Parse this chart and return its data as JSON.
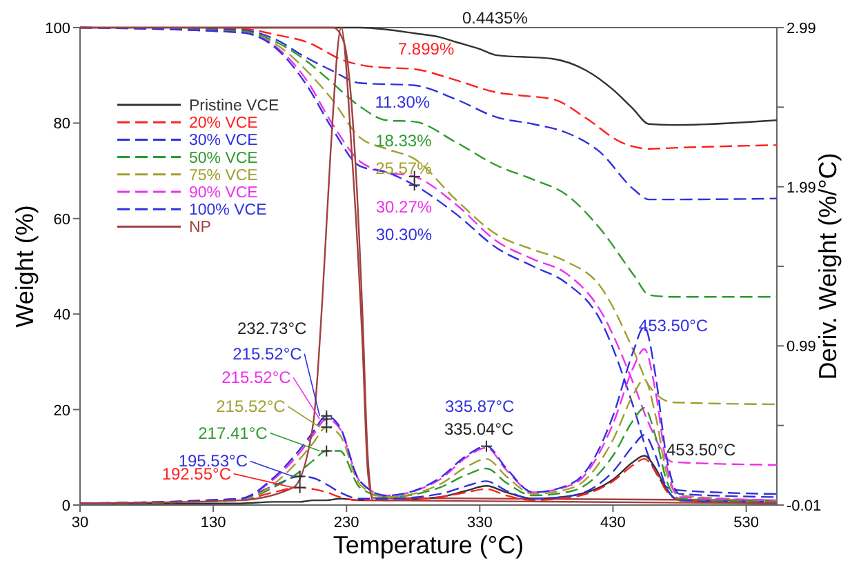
{
  "chart_data": {
    "type": "line",
    "xlabel": "Temperature (°C)",
    "ylabel": "Weight (%)",
    "y2label": "Deriv. Weight (%/°C)",
    "xlim": [
      30,
      553
    ],
    "xticks": [
      30,
      130,
      230,
      330,
      430,
      530
    ],
    "ylim": [
      0,
      100
    ],
    "yticks": [
      0,
      20,
      40,
      60,
      80,
      100
    ],
    "y2lim": [
      -0.01,
      2.99
    ],
    "y2ticks": [
      -0.01,
      {
        "value": 0.49,
        "label": null
      },
      0.99,
      {
        "value": 1.49,
        "label": null
      },
      1.99,
      {
        "value": 2.49,
        "label": null
      },
      2.99
    ],
    "legend": "top left",
    "grid": false,
    "series": [
      {
        "name": "Pristine VCE",
        "color": "#333333",
        "line_style": "solid",
        "x": [
          30,
          240,
          260,
          281,
          300,
          312,
          330,
          343,
          384,
          410,
          430,
          445,
          457,
          475,
          553
        ],
        "values": [
          100,
          100,
          99.6,
          98.8,
          98,
          97,
          95.5,
          94.2,
          93.5,
          91,
          87,
          83,
          79.8,
          79.6,
          80.6
        ]
      },
      {
        "name": "20% VCE",
        "color": "#ff2020",
        "line_style": "dashed",
        "x": [
          30,
          150,
          177,
          200,
          229,
          250,
          281,
          312,
          343,
          360,
          385,
          410,
          436,
          457,
          475,
          553
        ],
        "values": [
          100,
          99.8,
          98.5,
          97,
          93,
          91.8,
          91.3,
          89,
          86.4,
          85.8,
          85,
          81,
          76,
          74.6,
          74.8,
          75.4
        ]
      },
      {
        "name": "30% VCE",
        "color": "#3030dd",
        "line_style": "dashed",
        "x": [
          30,
          150,
          177,
          198,
          219,
          240,
          281,
          312,
          343,
          370,
          395,
          420,
          446,
          457,
          475,
          553
        ],
        "values": [
          100,
          99.5,
          97.5,
          94,
          91,
          88.4,
          87.9,
          85,
          81.2,
          79.8,
          78,
          74,
          66,
          64,
          64,
          64.2
        ]
      },
      {
        "name": "50% VCE",
        "color": "#2e9b2e",
        "line_style": "dashed",
        "x": [
          30,
          150,
          177,
          200,
          219,
          240,
          260,
          281,
          312,
          343,
          370,
          395,
          420,
          446,
          457,
          475,
          553
        ],
        "values": [
          100,
          99.3,
          97,
          93,
          88.5,
          83.5,
          80.6,
          80.3,
          76,
          71.1,
          68.2,
          65,
          58,
          48,
          44,
          43.6,
          43.6
        ]
      },
      {
        "name": "75% VCE",
        "color": "#a0a030",
        "line_style": "dashed",
        "x": [
          30,
          150,
          177,
          200,
          219,
          240,
          260,
          281,
          312,
          343,
          370,
          395,
          420,
          446,
          457,
          475,
          553
        ],
        "values": [
          100,
          99,
          96.5,
          91,
          85,
          77,
          74.6,
          72.5,
          64,
          56.6,
          53.5,
          51,
          46,
          32,
          25,
          21.5,
          21.1
        ]
      },
      {
        "name": "90% VCE",
        "color": "#ee30ee",
        "line_style": "dashed",
        "x": [
          30,
          150,
          177,
          200,
          219,
          240,
          260,
          281,
          312,
          343,
          370,
          395,
          420,
          446,
          457,
          475,
          553
        ],
        "values": [
          100,
          99,
          96,
          89,
          80,
          72,
          69.7,
          68.8,
          63,
          55.2,
          51.5,
          48.5,
          41,
          25,
          17,
          9,
          8.4
        ]
      },
      {
        "name": "100% VCE",
        "color": "#3030e0",
        "line_style": "dashed",
        "x": [
          30,
          150,
          177,
          200,
          219,
          240,
          260,
          281,
          312,
          343,
          370,
          395,
          420,
          446,
          457,
          475,
          553
        ],
        "values": [
          100,
          99,
          95.7,
          88,
          79,
          71,
          69.7,
          67,
          61,
          53.8,
          50,
          46.5,
          39,
          20,
          10,
          3.2,
          2.3
        ]
      },
      {
        "name": "NP",
        "color": "#a04040",
        "line_style": "solid",
        "x": [
          30,
          220,
          228,
          236,
          242,
          246,
          250,
          553
        ],
        "values": [
          100,
          100,
          97,
          75,
          40,
          10,
          1.5,
          1
        ]
      },
      {
        "color": "#333333",
        "axis": "y2",
        "line_style": "solid",
        "x": [
          30,
          150,
          175,
          195,
          205,
          215,
          225,
          240,
          260,
          300,
          320,
          335,
          350,
          370,
          400,
          430,
          445,
          453.5,
          462,
          470,
          480,
          553
        ],
        "values": [
          0,
          0,
          0.01,
          0.01,
          0.02,
          0.02,
          0.03,
          0.02,
          0.02,
          0.04,
          0.08,
          0.11,
          0.07,
          0.03,
          0.05,
          0.15,
          0.26,
          0.3,
          0.22,
          0.09,
          0.02,
          0
        ]
      },
      {
        "color": "#ff2020",
        "axis": "y2",
        "line_style": "dashed",
        "x": [
          30,
          150,
          175,
          195,
          205,
          215,
          225,
          240,
          260,
          300,
          320,
          335,
          350,
          370,
          400,
          430,
          445,
          453.5,
          462,
          470,
          480,
          553
        ],
        "values": [
          0,
          0.02,
          0.07,
          0.1,
          0.09,
          0.07,
          0.04,
          0.02,
          0.02,
          0.04,
          0.07,
          0.09,
          0.05,
          0.02,
          0.04,
          0.14,
          0.24,
          0.28,
          0.2,
          0.08,
          0.02,
          0
        ]
      },
      {
        "color": "#3030dd",
        "axis": "y2",
        "line_style": "dashed",
        "x": [
          30,
          150,
          175,
          195,
          205,
          215,
          225,
          240,
          260,
          300,
          320,
          335,
          350,
          370,
          400,
          430,
          445,
          453.5,
          462,
          470,
          480,
          553
        ],
        "values": [
          0,
          0.03,
          0.11,
          0.17,
          0.16,
          0.12,
          0.07,
          0.03,
          0.03,
          0.06,
          0.11,
          0.14,
          0.08,
          0.03,
          0.05,
          0.2,
          0.36,
          0.43,
          0.3,
          0.1,
          0.02,
          0.01
        ]
      },
      {
        "color": "#2e9b2e",
        "axis": "y2",
        "line_style": "dashed",
        "x": [
          30,
          150,
          175,
          195,
          205,
          215,
          225,
          240,
          260,
          300,
          320,
          335,
          350,
          370,
          400,
          430,
          445,
          453.5,
          462,
          470,
          480,
          553
        ],
        "values": [
          0,
          0.02,
          0.1,
          0.2,
          0.27,
          0.33,
          0.33,
          0.1,
          0.04,
          0.1,
          0.18,
          0.22,
          0.13,
          0.05,
          0.08,
          0.3,
          0.52,
          0.6,
          0.42,
          0.15,
          0.03,
          0.01
        ]
      },
      {
        "color": "#a0a030",
        "axis": "y2",
        "line_style": "dashed",
        "x": [
          30,
          150,
          175,
          195,
          205,
          215,
          225,
          240,
          260,
          300,
          320,
          335,
          350,
          370,
          400,
          430,
          445,
          453.5,
          462,
          470,
          480,
          553
        ],
        "values": [
          0,
          0.02,
          0.12,
          0.28,
          0.38,
          0.48,
          0.43,
          0.12,
          0.04,
          0.12,
          0.23,
          0.28,
          0.17,
          0.06,
          0.1,
          0.4,
          0.68,
          0.78,
          0.55,
          0.2,
          0.05,
          0.02
        ]
      },
      {
        "color": "#ee30ee",
        "axis": "y2",
        "line_style": "dashed",
        "x": [
          30,
          150,
          175,
          195,
          205,
          215,
          225,
          240,
          260,
          300,
          320,
          335,
          350,
          370,
          400,
          430,
          445,
          453.5,
          462,
          470,
          480,
          553
        ],
        "values": [
          0,
          0.03,
          0.15,
          0.32,
          0.43,
          0.53,
          0.47,
          0.14,
          0.05,
          0.15,
          0.29,
          0.35,
          0.21,
          0.07,
          0.12,
          0.5,
          0.85,
          0.97,
          0.7,
          0.25,
          0.04,
          0.02
        ]
      },
      {
        "color": "#3030e0",
        "axis": "y2",
        "line_style": "dashed",
        "x": [
          30,
          150,
          175,
          195,
          205,
          215,
          225,
          240,
          260,
          300,
          320,
          335,
          350,
          370,
          400,
          430,
          445,
          453.5,
          462,
          470,
          480,
          553
        ],
        "values": [
          0,
          0.03,
          0.16,
          0.34,
          0.45,
          0.55,
          0.48,
          0.14,
          0.05,
          0.16,
          0.3,
          0.36,
          0.22,
          0.07,
          0.13,
          0.55,
          0.95,
          1.11,
          0.8,
          0.3,
          0.06,
          0.04
        ]
      },
      {
        "color": "#a04040",
        "axis": "y2",
        "line_style": "solid",
        "x": [
          30,
          150,
          190,
          205,
          212,
          218,
          226,
          234,
          242,
          246,
          250,
          553
        ],
        "values": [
          0,
          0.02,
          0.1,
          0.5,
          1.3,
          2.2,
          2.99,
          2.2,
          1,
          0.2,
          0.02,
          0
        ]
      }
    ],
    "annotations": [
      "0.4435%",
      {
        "text": "7.899%",
        "x": 250,
        "y": 91.8
      },
      {
        "text": "11.30%",
        "x": 240,
        "y": 88.4
      },
      {
        "text": "18.33%",
        "x": 260,
        "y": 80.6
      },
      {
        "text": "25.57%",
        "x": 260,
        "y": 74.6
      },
      {
        "text": "30.27%",
        "x": 281,
        "y": 68.8
      },
      {
        "text": "30.30%",
        "x": 281,
        "y": 67
      },
      "232.73°C",
      {
        "text": "215.52°C",
        "x": 215,
        "y": 18.67
      },
      {
        "text": "215.52°C",
        "x": 215,
        "y": 18
      },
      {
        "text": "215.52°C",
        "x": 215,
        "y": 16.33
      },
      {
        "text": "217.41°C",
        "x": 215,
        "y": 11.33
      },
      {
        "text": "195.53°C",
        "x": 195,
        "y": 6
      },
      {
        "text": "192.55°C",
        "x": 195,
        "y": 3.67
      },
      {
        "text": "335.87°C",
        "x": 335,
        "y": 12.33
      },
      "335.04°C",
      {
        "text": "453.50°C",
        "x": 453.5,
        "y": 37.33
      },
      "453.50°C"
    ]
  }
}
